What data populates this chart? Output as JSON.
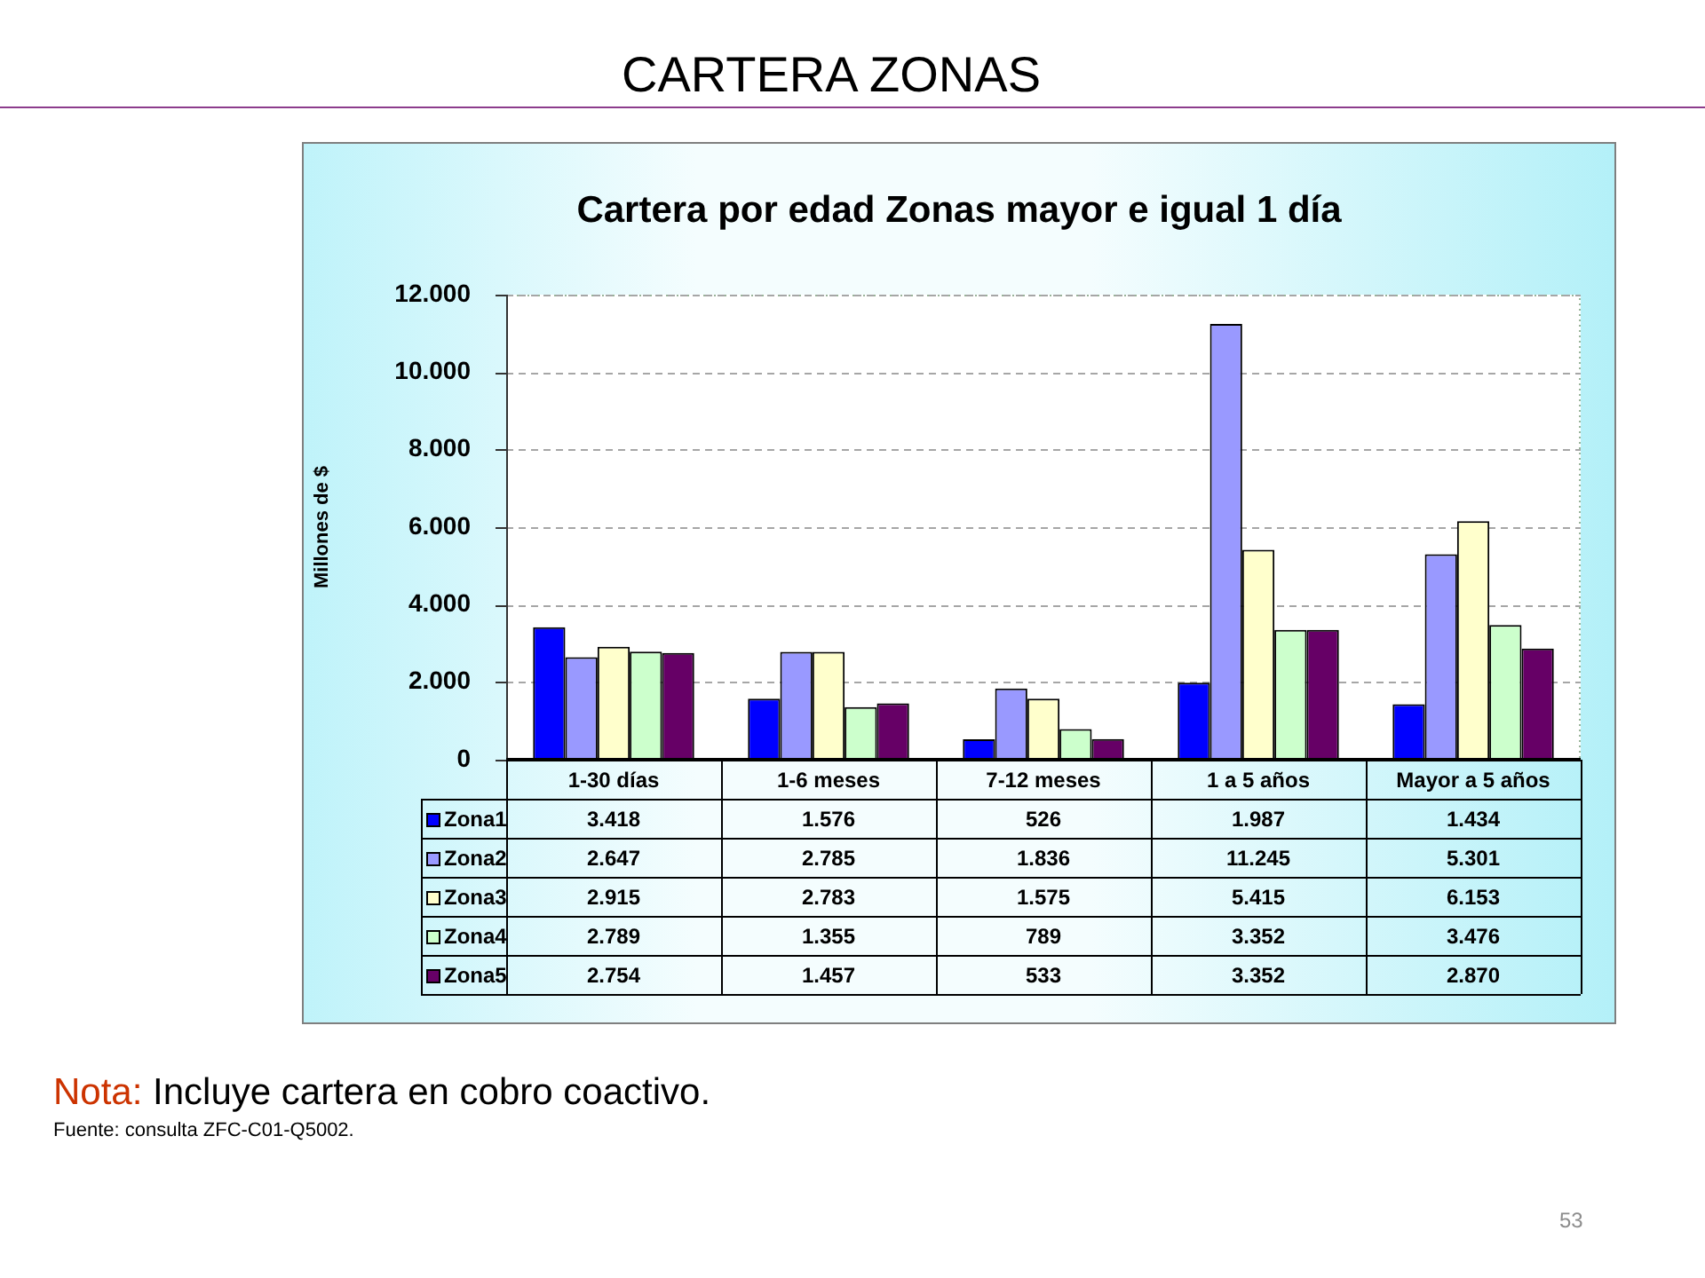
{
  "chart_data": {
    "type": "bar",
    "title": "CARTERA ZONAS",
    "subtitle": "Cartera por edad Zonas mayor e igual 1 día",
    "ylabel": "Millones de $",
    "categories": [
      "1-30 días",
      "1-6 meses",
      "7-12 meses",
      "1 a 5 años",
      "Mayor a 5 años"
    ],
    "series": [
      {
        "name": "Zona1",
        "color": "#0000ff",
        "values": [
          3418,
          1576,
          526,
          1987,
          1434
        ],
        "value_labels": [
          "3.418",
          "1.576",
          "526",
          "1.987",
          "1.434"
        ]
      },
      {
        "name": "Zona2",
        "color": "#9999ff",
        "values": [
          2647,
          2785,
          1836,
          11245,
          5301
        ],
        "value_labels": [
          "2.647",
          "2.785",
          "1.836",
          "11.245",
          "5.301"
        ]
      },
      {
        "name": "Zona3",
        "color": "#ffffcc",
        "values": [
          2915,
          2783,
          1575,
          5415,
          6153
        ],
        "value_labels": [
          "2.915",
          "2.783",
          "1.575",
          "5.415",
          "6.153"
        ]
      },
      {
        "name": "Zona4",
        "color": "#ccffcc",
        "values": [
          2789,
          1355,
          789,
          3352,
          3476
        ],
        "value_labels": [
          "2.789",
          "1.355",
          "789",
          "3.352",
          "3.476"
        ]
      },
      {
        "name": "Zona5",
        "color": "#660066",
        "values": [
          2754,
          1457,
          533,
          3352,
          2870
        ],
        "value_labels": [
          "2.754",
          "1.457",
          "533",
          "3.352",
          "2.870"
        ]
      }
    ],
    "ylim": [
      0,
      12000
    ],
    "yticks": [
      0,
      {
        "value": 2000,
        "label": "2.000"
      },
      {
        "value": 4000,
        "label": "4.000"
      },
      {
        "value": 6000,
        "label": "6.000"
      },
      {
        "value": 8000,
        "label": "8.000"
      },
      {
        "value": 10000,
        "label": "10.000"
      },
      {
        "value": 12000,
        "label": "12.000"
      }
    ],
    "grid": "y",
    "legend": "bottom left",
    "annotations": [
      "Nota: Incluye cartera en cobro coactivo.",
      "Fuente: consulta ZFC-C01-Q5002.",
      "53"
    ]
  }
}
